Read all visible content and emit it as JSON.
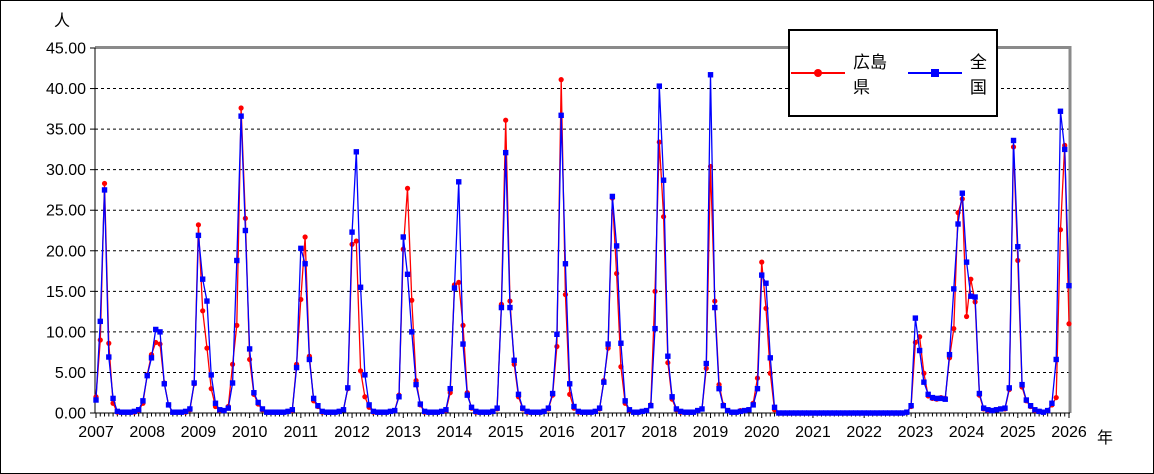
{
  "axis_units": {
    "y": "人",
    "x": "年"
  },
  "legend": [
    {
      "label": "広島県",
      "color": "#ff0000",
      "marker": "circle"
    },
    {
      "label": "全国",
      "color": "#0000ff",
      "marker": "square"
    }
  ],
  "chart_data": {
    "type": "line",
    "title": "",
    "ylabel": "人",
    "xlabel": "年",
    "y_axis": {
      "min": 0,
      "max": 45,
      "step": 5,
      "tick_format": "0.00",
      "grid": "dashed"
    },
    "x_axis": {
      "start": "2007-01",
      "end": "2026-01",
      "interval": "monthly",
      "year_labels": [
        "2007",
        "2008",
        "2009",
        "2010",
        "2011",
        "2012",
        "2013",
        "2014",
        "2015",
        "2016",
        "2017",
        "2018",
        "2019",
        "2020",
        "2021",
        "2022",
        "2023",
        "2024",
        "2025",
        "2026"
      ]
    },
    "legend_position": "top-right",
    "series": [
      {
        "name": "広島県",
        "color": "#ff0000",
        "marker": "circle",
        "values": [
          2.0,
          9.0,
          28.3,
          8.6,
          1.2,
          0.1,
          0.1,
          0.1,
          0.1,
          0.1,
          0.3,
          1.2,
          4.7,
          7.2,
          8.7,
          8.5,
          3.7,
          1.0,
          0.1,
          0.1,
          0.1,
          0.1,
          0.4,
          3.6,
          23.2,
          12.6,
          8.0,
          3.0,
          0.8,
          0.3,
          0.3,
          0.8,
          6.0,
          10.8,
          37.6,
          24.0,
          6.6,
          2.3,
          1.1,
          0.4,
          0.1,
          0.1,
          0.1,
          0.1,
          0.1,
          0.2,
          0.3,
          6.0,
          14.0,
          21.7,
          7.0,
          1.5,
          0.8,
          0.1,
          0.1,
          0.1,
          0.1,
          0.2,
          0.4,
          3.0,
          20.8,
          21.2,
          5.2,
          2.0,
          0.7,
          0.1,
          0.1,
          0.1,
          0.1,
          0.2,
          0.3,
          2.2,
          20.2,
          27.7,
          13.9,
          4.0,
          1.0,
          0.1,
          0.1,
          0.1,
          0.1,
          0.2,
          0.3,
          2.5,
          15.8,
          16.1,
          10.8,
          2.5,
          0.6,
          0.1,
          0.1,
          0.1,
          0.1,
          0.2,
          0.5,
          13.4,
          36.1,
          13.8,
          6.0,
          2.0,
          0.5,
          0.1,
          0.1,
          0.1,
          0.1,
          0.2,
          0.5,
          2.2,
          8.2,
          41.1,
          14.6,
          2.3,
          0.6,
          0.1,
          0.1,
          0.1,
          0.1,
          0.2,
          0.5,
          4.0,
          8.0,
          26.5,
          17.2,
          5.7,
          1.2,
          0.3,
          0.1,
          0.1,
          0.2,
          0.3,
          1.0,
          15.0,
          33.4,
          24.2,
          6.2,
          1.7,
          0.4,
          0.1,
          0.1,
          0.1,
          0.1,
          0.3,
          0.5,
          5.5,
          30.4,
          13.8,
          3.5,
          1.0,
          0.3,
          0.1,
          0.1,
          0.3,
          0.3,
          0.4,
          1.2,
          4.3,
          18.6,
          12.9,
          4.9,
          0.4,
          0.0,
          0.0,
          0.0,
          0.0,
          0.0,
          0.0,
          0.0,
          0.0,
          0.0,
          0.0,
          0.0,
          0.0,
          0.0,
          0.0,
          0.0,
          0.0,
          0.0,
          0.0,
          0.0,
          0.0,
          0.0,
          0.0,
          0.0,
          0.0,
          0.0,
          0.0,
          0.0,
          0.0,
          0.0,
          0.0,
          0.1,
          0.8,
          8.7,
          9.4,
          4.9,
          2.1,
          1.8,
          1.7,
          1.9,
          1.8,
          6.8,
          10.4,
          24.7,
          26.4,
          11.9,
          16.5,
          13.7,
          2.2,
          0.5,
          0.3,
          0.3,
          0.4,
          0.5,
          0.5,
          2.9,
          32.8,
          18.8,
          3.2,
          1.5,
          0.8,
          0.3,
          0.2,
          0.1,
          0.3,
          1.0,
          1.9,
          22.6,
          33.0,
          11.0
        ]
      },
      {
        "name": "全国",
        "color": "#0000ff",
        "marker": "square",
        "values": [
          1.6,
          11.3,
          27.5,
          6.9,
          1.8,
          0.2,
          0.1,
          0.1,
          0.1,
          0.2,
          0.4,
          1.5,
          4.6,
          6.8,
          10.3,
          10.0,
          3.6,
          1.0,
          0.1,
          0.1,
          0.1,
          0.2,
          0.5,
          3.7,
          21.9,
          16.5,
          13.8,
          4.7,
          1.2,
          0.4,
          0.3,
          0.6,
          3.7,
          18.8,
          36.6,
          22.5,
          7.9,
          2.5,
          1.3,
          0.5,
          0.1,
          0.1,
          0.1,
          0.1,
          0.1,
          0.2,
          0.4,
          5.6,
          20.3,
          18.4,
          6.6,
          1.8,
          0.9,
          0.2,
          0.1,
          0.1,
          0.1,
          0.2,
          0.4,
          3.1,
          22.3,
          32.2,
          15.5,
          4.7,
          1.0,
          0.2,
          0.1,
          0.1,
          0.1,
          0.2,
          0.3,
          2.0,
          21.7,
          17.1,
          10.0,
          3.5,
          1.1,
          0.2,
          0.1,
          0.1,
          0.1,
          0.2,
          0.4,
          3.0,
          15.4,
          28.5,
          8.5,
          2.2,
          0.7,
          0.2,
          0.1,
          0.1,
          0.1,
          0.2,
          0.6,
          13.0,
          32.1,
          13.0,
          6.5,
          2.3,
          0.6,
          0.2,
          0.1,
          0.1,
          0.1,
          0.2,
          0.6,
          2.4,
          9.7,
          36.7,
          18.4,
          3.6,
          0.8,
          0.2,
          0.1,
          0.1,
          0.1,
          0.2,
          0.6,
          3.8,
          8.5,
          26.7,
          20.6,
          8.6,
          1.5,
          0.4,
          0.1,
          0.1,
          0.2,
          0.3,
          0.9,
          10.4,
          40.3,
          28.7,
          7.0,
          2.0,
          0.5,
          0.2,
          0.1,
          0.1,
          0.1,
          0.3,
          0.5,
          6.1,
          41.7,
          13.0,
          3.0,
          0.9,
          0.3,
          0.1,
          0.1,
          0.2,
          0.3,
          0.4,
          1.0,
          3.0,
          17.0,
          16.0,
          6.8,
          0.7,
          0.0,
          0.0,
          0.0,
          0.0,
          0.0,
          0.0,
          0.0,
          0.0,
          0.0,
          0.0,
          0.0,
          0.0,
          0.0,
          0.0,
          0.0,
          0.0,
          0.0,
          0.0,
          0.0,
          0.0,
          0.0,
          0.0,
          0.0,
          0.0,
          0.0,
          0.0,
          0.0,
          0.0,
          0.0,
          0.0,
          0.1,
          0.9,
          11.7,
          7.7,
          3.8,
          2.3,
          1.9,
          1.8,
          1.8,
          1.7,
          7.2,
          15.3,
          23.3,
          27.1,
          18.6,
          14.4,
          14.3,
          2.4,
          0.6,
          0.4,
          0.3,
          0.4,
          0.5,
          0.6,
          3.1,
          33.6,
          20.5,
          3.5,
          1.6,
          0.9,
          0.4,
          0.2,
          0.1,
          0.3,
          1.2,
          6.6,
          37.2,
          32.5,
          15.7
        ]
      }
    ]
  }
}
